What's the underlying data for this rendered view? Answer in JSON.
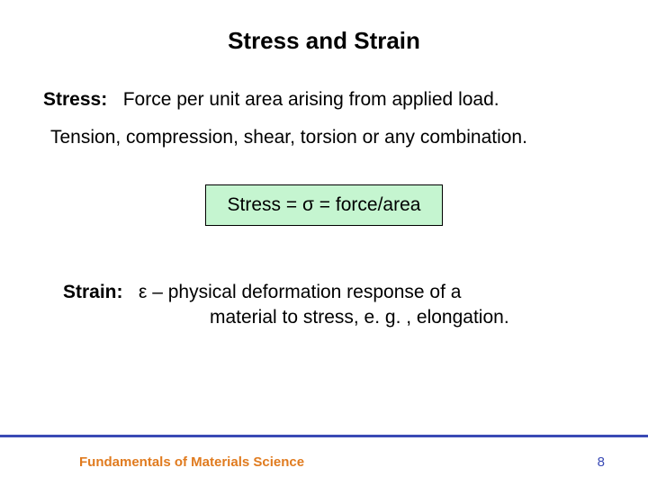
{
  "title": "Stress and Strain",
  "stress": {
    "label": "Stress:",
    "definition": "Force per unit area arising from applied load.",
    "types": "Tension, compression, shear, torsion or any combination."
  },
  "formula": {
    "text": "Stress = σ = force/area",
    "background_color": "#c5f5d0",
    "border_color": "#000000"
  },
  "strain": {
    "label": "Strain:",
    "line1": "ε – physical deformation response of a",
    "line2": "material to stress, e. g. , elongation."
  },
  "footer": {
    "text": "Fundamentals of Materials Science",
    "page": "8",
    "text_color": "#e07b1f",
    "line_color": "#3a4ab5",
    "page_color": "#3a4ab5"
  },
  "styling": {
    "title_fontsize": 26,
    "body_fontsize": 21,
    "footer_fontsize": 15,
    "background_color": "#ffffff",
    "text_color": "#000000"
  }
}
